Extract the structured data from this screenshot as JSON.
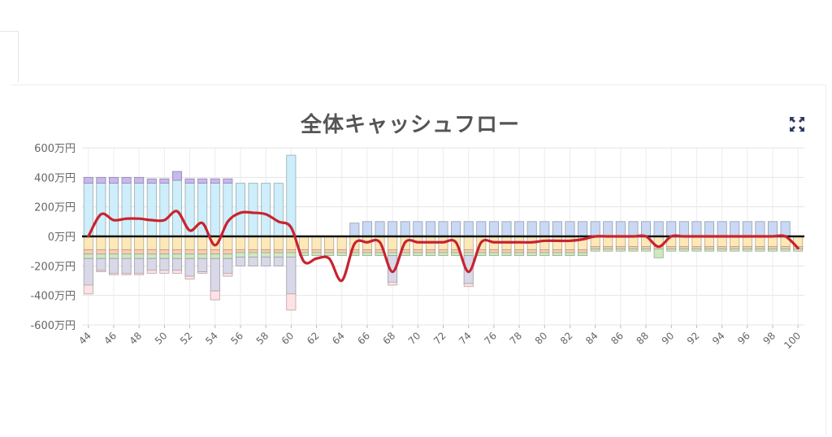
{
  "page": {
    "expand_icon": "expand-arrows-icon"
  },
  "chart_data": {
    "type": "bar",
    "title": "全体キャッシュフロー",
    "x": [
      44,
      45,
      46,
      47,
      48,
      49,
      50,
      51,
      52,
      53,
      54,
      55,
      56,
      57,
      58,
      59,
      60,
      61,
      62,
      63,
      64,
      65,
      66,
      67,
      68,
      69,
      70,
      71,
      72,
      73,
      74,
      75,
      76,
      77,
      78,
      79,
      80,
      81,
      82,
      83,
      84,
      85,
      86,
      87,
      88,
      89,
      90,
      91,
      92,
      93,
      94,
      95,
      96,
      97,
      98,
      99,
      100
    ],
    "x_tick_labels": [
      "44",
      "46",
      "48",
      "50",
      "52",
      "54",
      "56",
      "58",
      "60",
      "62",
      "64",
      "66",
      "68",
      "70",
      "72",
      "74",
      "76",
      "78",
      "80",
      "82",
      "84",
      "86",
      "88",
      "90",
      "92",
      "94",
      "96",
      "98",
      "100"
    ],
    "y_tick_labels": [
      "600万円",
      "400万円",
      "200万円",
      "0万円",
      "-200万円",
      "-400万円",
      "-600万円"
    ],
    "ylim": [
      -600,
      600
    ],
    "grid": true,
    "colors": {
      "income_salary": "#cdeefa",
      "income_other": "#c9b8ef",
      "income_pension": "#c9d9f4",
      "expense_living": "#fde9b8",
      "expense_other": "#f9cdb2",
      "expense_housing": "#cde9c2",
      "expense_education": "#d8d8e8",
      "expense_special": "#ffe2e6",
      "net_line": "#c8232f",
      "zero_line": "#111111"
    },
    "series": [
      {
        "key": "income_salary",
        "stack": "pos",
        "values": [
          360,
          360,
          360,
          360,
          360,
          360,
          360,
          380,
          360,
          360,
          360,
          360,
          360,
          360,
          360,
          360,
          550,
          0,
          0,
          0,
          0,
          0,
          0,
          0,
          0,
          0,
          0,
          0,
          0,
          0,
          0,
          0,
          0,
          0,
          0,
          0,
          0,
          0,
          0,
          0,
          0,
          0,
          0,
          0,
          0,
          0,
          0,
          0,
          0,
          0,
          0,
          0,
          0,
          0,
          0,
          0,
          0
        ]
      },
      {
        "key": "income_other",
        "stack": "pos",
        "values": [
          40,
          40,
          40,
          40,
          40,
          30,
          30,
          60,
          30,
          30,
          30,
          30,
          0,
          0,
          0,
          0,
          0,
          0,
          0,
          0,
          0,
          0,
          0,
          0,
          0,
          0,
          0,
          0,
          0,
          0,
          0,
          0,
          0,
          0,
          0,
          0,
          0,
          0,
          0,
          0,
          0,
          0,
          0,
          0,
          0,
          0,
          0,
          0,
          0,
          0,
          0,
          0,
          0,
          0,
          0,
          0,
          0
        ]
      },
      {
        "key": "income_pension",
        "stack": "pos",
        "values": [
          0,
          0,
          0,
          0,
          0,
          0,
          0,
          0,
          0,
          0,
          0,
          0,
          0,
          0,
          0,
          0,
          0,
          0,
          0,
          0,
          0,
          90,
          100,
          100,
          100,
          100,
          100,
          100,
          100,
          100,
          100,
          100,
          100,
          100,
          100,
          100,
          100,
          100,
          100,
          100,
          100,
          100,
          100,
          100,
          100,
          100,
          100,
          100,
          100,
          100,
          100,
          100,
          100,
          100,
          100,
          100,
          0
        ]
      },
      {
        "key": "expense_living",
        "stack": "neg",
        "values": [
          -90,
          -90,
          -90,
          -90,
          -90,
          -90,
          -90,
          -90,
          -90,
          -90,
          -90,
          -90,
          -90,
          -90,
          -90,
          -90,
          -90,
          -90,
          -90,
          -90,
          -90,
          -90,
          -90,
          -90,
          -90,
          -90,
          -90,
          -90,
          -90,
          -90,
          -90,
          -90,
          -90,
          -90,
          -90,
          -90,
          -90,
          -90,
          -90,
          -90,
          -70,
          -70,
          -70,
          -70,
          -70,
          -70,
          -70,
          -70,
          -70,
          -70,
          -70,
          -70,
          -70,
          -70,
          -70,
          -70,
          -70
        ]
      },
      {
        "key": "expense_other",
        "stack": "neg",
        "values": [
          -30,
          -30,
          -30,
          -30,
          -30,
          -30,
          -30,
          -30,
          -30,
          -30,
          -30,
          -30,
          -20,
          -20,
          -20,
          -20,
          -20,
          -20,
          -20,
          -20,
          -20,
          -20,
          -20,
          -20,
          -20,
          -20,
          -20,
          -20,
          -20,
          -20,
          -20,
          -20,
          -20,
          -20,
          -20,
          -20,
          -20,
          -20,
          -20,
          -20,
          -15,
          -15,
          -15,
          -15,
          -15,
          -15,
          -15,
          -15,
          -15,
          -15,
          -15,
          -15,
          -15,
          -15,
          -15,
          -15,
          -15
        ]
      },
      {
        "key": "expense_housing",
        "stack": "neg",
        "values": [
          -30,
          -30,
          -30,
          -30,
          -30,
          -30,
          -30,
          -30,
          -30,
          -30,
          -30,
          -30,
          -30,
          -30,
          -30,
          -30,
          -30,
          -20,
          -20,
          -20,
          -20,
          -20,
          -20,
          -20,
          -20,
          -20,
          -20,
          -20,
          -20,
          -20,
          -20,
          -20,
          -20,
          -20,
          -20,
          -20,
          -20,
          -20,
          -20,
          -20,
          -15,
          -15,
          -15,
          -15,
          -15,
          -60,
          -15,
          -15,
          -15,
          -15,
          -15,
          -15,
          -15,
          -15,
          -15,
          -15,
          -15
        ]
      },
      {
        "key": "expense_education",
        "stack": "neg",
        "values": [
          -180,
          -80,
          -100,
          -100,
          -100,
          -80,
          -80,
          -80,
          -120,
          -90,
          -220,
          -100,
          -60,
          -60,
          -60,
          -60,
          -250,
          0,
          0,
          0,
          0,
          0,
          0,
          0,
          -180,
          0,
          0,
          0,
          0,
          0,
          -190,
          0,
          0,
          0,
          0,
          0,
          0,
          0,
          0,
          0,
          0,
          0,
          0,
          0,
          0,
          0,
          0,
          0,
          0,
          0,
          0,
          0,
          0,
          0,
          0,
          0,
          0
        ]
      },
      {
        "key": "expense_special",
        "stack": "neg",
        "values": [
          -60,
          -10,
          -10,
          -10,
          -10,
          -20,
          -20,
          -20,
          -20,
          -10,
          -60,
          -20,
          0,
          0,
          0,
          0,
          -110,
          0,
          0,
          0,
          0,
          0,
          0,
          0,
          -20,
          0,
          0,
          0,
          0,
          0,
          -20,
          0,
          0,
          0,
          0,
          0,
          0,
          0,
          0,
          0,
          0,
          0,
          0,
          0,
          0,
          0,
          0,
          0,
          0,
          0,
          0,
          0,
          0,
          0,
          0,
          0,
          0
        ]
      }
    ],
    "net_line": [
      0,
      150,
      110,
      120,
      120,
      110,
      110,
      170,
      40,
      90,
      -60,
      100,
      160,
      160,
      150,
      100,
      60,
      -170,
      -150,
      -150,
      -300,
      -50,
      -40,
      -40,
      -240,
      -40,
      -40,
      -40,
      -40,
      -40,
      -240,
      -40,
      -40,
      -40,
      -40,
      -40,
      -30,
      -30,
      -30,
      -20,
      0,
      0,
      0,
      0,
      0,
      -70,
      0,
      0,
      0,
      0,
      0,
      0,
      0,
      0,
      0,
      0,
      -80
    ]
  }
}
